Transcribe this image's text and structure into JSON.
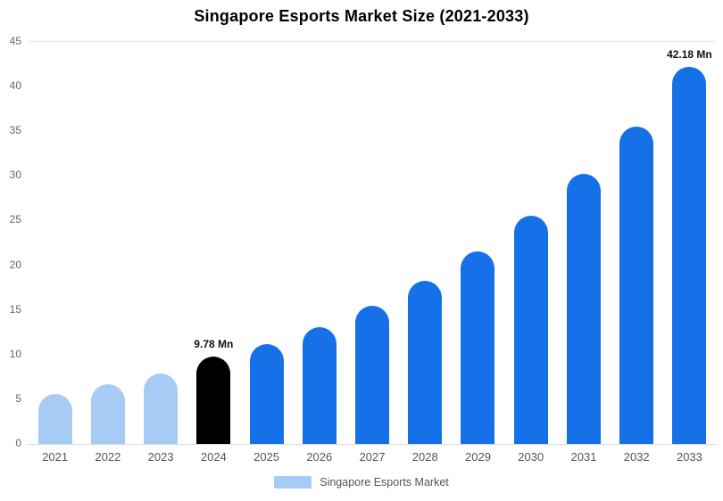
{
  "chart_data": {
    "type": "bar",
    "title": "Singapore Esports Market Size (2021-2033)",
    "categories": [
      "2021",
      "2022",
      "2023",
      "2024",
      "2025",
      "2026",
      "2027",
      "2028",
      "2029",
      "2030",
      "2031",
      "2032",
      "2033"
    ],
    "values": [
      5.6,
      6.7,
      7.9,
      9.78,
      11.2,
      13.1,
      15.5,
      18.3,
      21.6,
      25.5,
      30.2,
      35.5,
      42.18
    ],
    "unit": "Mn",
    "bar_colors": [
      "#A6CBF4",
      "#A6CBF4",
      "#A6CBF4",
      "#000000",
      "#1671E8",
      "#1671E8",
      "#1671E8",
      "#1671E8",
      "#1671E8",
      "#1671E8",
      "#1671E8",
      "#1671E8",
      "#1671E8"
    ],
    "data_labels": [
      null,
      null,
      null,
      "9.78 Mn",
      null,
      null,
      null,
      null,
      null,
      null,
      null,
      null,
      "42.18 Mn"
    ],
    "xlabel": "",
    "ylabel": "",
    "ylim": [
      0,
      45
    ],
    "ytick_step": 5,
    "grid": "top-line-only",
    "legend_position": "bottom"
  },
  "legend": {
    "label": "Singapore Esports Market",
    "swatch_color": "#A6CBF4"
  },
  "colors": {
    "historical": "#A6CBF4",
    "base_year": "#000000",
    "forecast": "#1671E8",
    "axis_text": "#666666",
    "gridline": "#E4E4E4"
  }
}
